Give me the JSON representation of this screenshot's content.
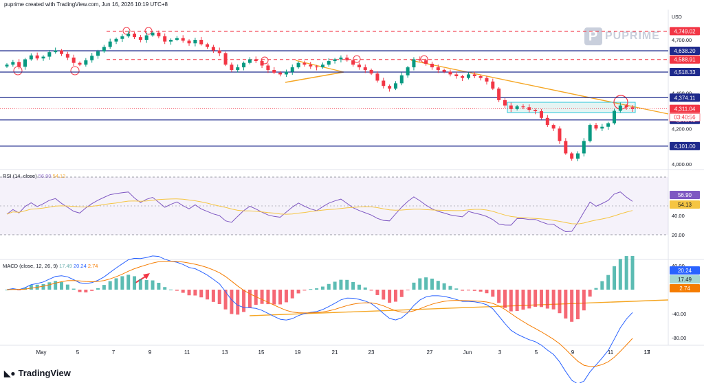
{
  "header": {
    "text": "puprime created with TradingView.com, Jun 16, 2026 10:19 UTC+8"
  },
  "brand": {
    "watermark": "PUPRIME",
    "footer": "TradingView"
  },
  "axis": {
    "currency": "USD"
  },
  "price_panel": {
    "ticks": [
      "4,700.00",
      "4,400.00",
      "4,200.00",
      "4,000.00"
    ],
    "levels": [
      {
        "label": "4,749.02",
        "color": "#f23645",
        "style": "dashed"
      },
      {
        "label": "4,638.20",
        "color": "#1e2a8c",
        "style": "solid"
      },
      {
        "label": "4,588.91",
        "color": "#f23645",
        "style": "dashed"
      },
      {
        "label": "4,518.33",
        "color": "#1e2a8c",
        "style": "solid"
      },
      {
        "label": "4,374.11",
        "color": "#1e2a8c",
        "style": "solid"
      },
      {
        "label": "4,248.48",
        "color": "#1e2a8c",
        "style": "solid"
      },
      {
        "label": "4,101.00",
        "color": "#1e2a8c",
        "style": "solid"
      }
    ],
    "last_price": {
      "label": "4,311.04",
      "countdown": "03:40:56",
      "color": "#f23645"
    }
  },
  "rsi_panel": {
    "legend": "RSI (14, close)",
    "values": [
      "56.90",
      "54.13"
    ],
    "ticks": [
      "60.00",
      "40.00",
      "20.00"
    ],
    "tags": [
      {
        "label": "56.90",
        "color": "#7e57c2"
      },
      {
        "label": "54.13",
        "color": "#f5c542"
      }
    ]
  },
  "macd_panel": {
    "legend": "MACD (close, 12, 26, 9)",
    "values": [
      "17.49",
      "20.24",
      "2.74"
    ],
    "ticks": [
      "40.00",
      "-40.00",
      "-80.00"
    ],
    "tags": [
      {
        "label": "20.24",
        "color": "#2962ff"
      },
      {
        "label": "17.49",
        "color": "#a5d6d0"
      },
      {
        "label": "2.74",
        "color": "#f57c00"
      }
    ]
  },
  "xaxis": {
    "labels": [
      "May",
      "5",
      "7",
      "9",
      "11",
      "13",
      "15",
      "19",
      "21",
      "23",
      "27",
      "Jun",
      "3",
      "5",
      "9",
      "11",
      "13",
      "17"
    ]
  },
  "chart_data": {
    "type": "candlestick",
    "ylabel": "USD",
    "close": [
      4560,
      4575,
      4548,
      4590,
      4612,
      4595,
      4605,
      4630,
      4640,
      4620,
      4600,
      4570,
      4560,
      4585,
      4610,
      4635,
      4660,
      4690,
      4705,
      4720,
      4735,
      4715,
      4700,
      4725,
      4740,
      4720,
      4690,
      4700,
      4710,
      4695,
      4680,
      4700,
      4675,
      4660,
      4640,
      4625,
      4560,
      4530,
      4545,
      4570,
      4590,
      4580,
      4555,
      4530,
      4515,
      4505,
      4520,
      4545,
      4570,
      4560,
      4550,
      4545,
      4560,
      4580,
      4590,
      4600,
      4585,
      4560,
      4545,
      4530,
      4510,
      4470,
      4440,
      4425,
      4455,
      4500,
      4545,
      4590,
      4585,
      4565,
      4545,
      4530,
      4520,
      4505,
      4495,
      4485,
      4505,
      4495,
      4485,
      4465,
      4425,
      4360,
      4330,
      4310,
      4325,
      4320,
      4305,
      4298,
      4260,
      4220,
      4200,
      4130,
      4060,
      4030,
      4060,
      4130,
      4220,
      4200,
      4210,
      4230,
      4300,
      4330,
      4320,
      4311
    ]
  }
}
